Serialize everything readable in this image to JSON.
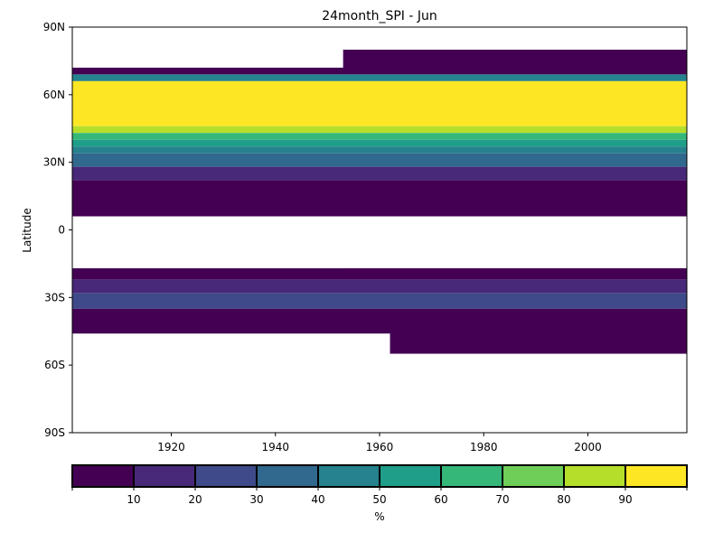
{
  "chart_data": {
    "type": "heatmap",
    "title": "24month_SPI - Jun",
    "xlabel": "",
    "ylabel": "Latitude",
    "xlim": [
      1901,
      2019
    ],
    "ylim": [
      -90,
      90
    ],
    "x_ticks": [
      1920,
      1940,
      1960,
      1980,
      2000
    ],
    "x_tick_labels": [
      "1920",
      "1940",
      "1960",
      "1980",
      "2000"
    ],
    "y_ticks": [
      90,
      60,
      30,
      0,
      -30,
      -60,
      -90
    ],
    "y_tick_labels": [
      "90N",
      "60N",
      "30N",
      "0",
      "30S",
      "60S",
      "90S"
    ],
    "grid": false,
    "colorbar": {
      "label": "%",
      "boundaries": [
        0,
        10,
        20,
        30,
        40,
        50,
        60,
        70,
        80,
        90,
        100
      ],
      "tick_labels": [
        "10",
        "20",
        "30",
        "40",
        "50",
        "60",
        "70",
        "80",
        "90"
      ],
      "colors": [
        "#440154",
        "#482878",
        "#3e4a89",
        "#31688e",
        "#26828e",
        "#1f9e89",
        "#35b779",
        "#6ece58",
        "#b5de2b",
        "#fde725"
      ]
    },
    "latitude_bands": [
      {
        "lat_from": 80,
        "lat_to": 69,
        "value": 5
      },
      {
        "lat_from": 69,
        "lat_to": 66,
        "value": 45
      },
      {
        "lat_from": 66,
        "lat_to": 46,
        "value": 95
      },
      {
        "lat_from": 46,
        "lat_to": 43,
        "value": 85
      },
      {
        "lat_from": 43,
        "lat_to": 40,
        "value": 65
      },
      {
        "lat_from": 40,
        "lat_to": 37,
        "value": 55
      },
      {
        "lat_from": 37,
        "lat_to": 34,
        "value": 45
      },
      {
        "lat_from": 34,
        "lat_to": 28,
        "value": 35
      },
      {
        "lat_from": 28,
        "lat_to": 22,
        "value": 15
      },
      {
        "lat_from": 22,
        "lat_to": 6,
        "value": 5
      },
      {
        "lat_from": -17,
        "lat_to": -22,
        "value": 5
      },
      {
        "lat_from": -22,
        "lat_to": -28,
        "value": 15
      },
      {
        "lat_from": -28,
        "lat_to": -35,
        "value": 25
      },
      {
        "lat_from": -35,
        "lat_to": -55,
        "value": 5
      }
    ],
    "white_regions": [
      {
        "x_from": 1901,
        "x_to": 2019,
        "lat_from": 90,
        "lat_to": 80
      },
      {
        "x_from": 1901,
        "x_to": 1953,
        "lat_from": 80,
        "lat_to": 72
      },
      {
        "x_from": 1901,
        "x_to": 1953,
        "lat_from": 6,
        "lat_to": -17
      },
      {
        "x_from": 1953,
        "x_to": 2019,
        "lat_from": 6,
        "lat_to": -1
      },
      {
        "x_from": 1953,
        "x_to": 1962,
        "lat_from": -1,
        "lat_to": -12
      },
      {
        "x_from": 1901,
        "x_to": 1962,
        "lat_from": -46,
        "lat_to": -90
      },
      {
        "x_from": 1962,
        "x_to": 2019,
        "lat_from": -55,
        "lat_to": -90
      }
    ]
  }
}
